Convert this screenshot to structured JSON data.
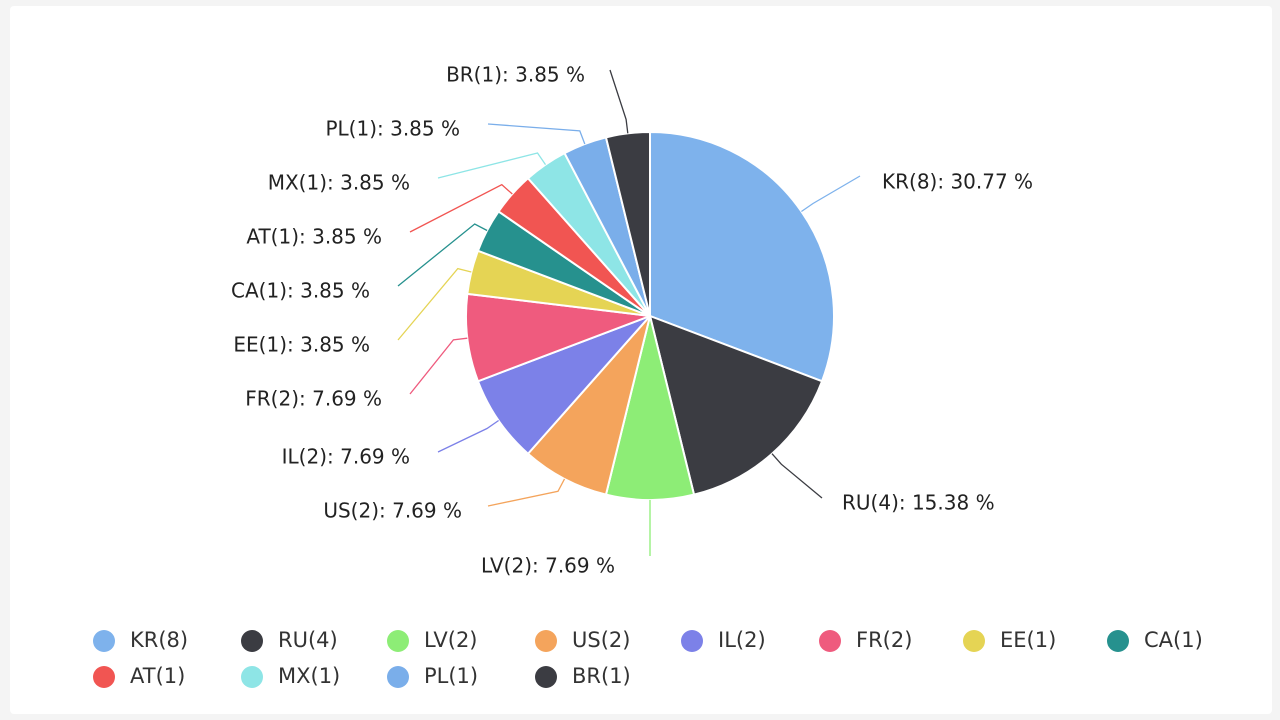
{
  "chart_data": {
    "type": "pie",
    "title": "",
    "series": [
      {
        "name": "KR(8)",
        "label": "KR(8): 30.77 %",
        "value": 8,
        "percent": 30.77,
        "color": "#7eb2ec"
      },
      {
        "name": "RU(4)",
        "label": "RU(4): 15.38 %",
        "value": 4,
        "percent": 15.38,
        "color": "#3b3c42"
      },
      {
        "name": "LV(2)",
        "label": "LV(2): 7.69 %",
        "value": 2,
        "percent": 7.69,
        "color": "#8ded76"
      },
      {
        "name": "US(2)",
        "label": "US(2): 7.69 %",
        "value": 2,
        "percent": 7.69,
        "color": "#f4a45c"
      },
      {
        "name": "IL(2)",
        "label": "IL(2): 7.69 %",
        "value": 2,
        "percent": 7.69,
        "color": "#7c81e8"
      },
      {
        "name": "FR(2)",
        "label": "FR(2): 7.69 %",
        "value": 2,
        "percent": 7.69,
        "color": "#ef5b7e"
      },
      {
        "name": "EE(1)",
        "label": "EE(1): 3.85 %",
        "value": 1,
        "percent": 3.85,
        "color": "#e5d454"
      },
      {
        "name": "CA(1)",
        "label": "CA(1): 3.85 %",
        "value": 1,
        "percent": 3.85,
        "color": "#26918e"
      },
      {
        "name": "AT(1)",
        "label": "AT(1): 3.85 %",
        "value": 1,
        "percent": 3.85,
        "color": "#f15552"
      },
      {
        "name": "MX(1)",
        "label": "MX(1): 3.85 %",
        "value": 1,
        "percent": 3.85,
        "color": "#8ee5e6"
      },
      {
        "name": "PL(1)",
        "label": "PL(1): 3.85 %",
        "value": 1,
        "percent": 3.85,
        "color": "#7aaeea"
      },
      {
        "name": "BR(1)",
        "label": "BR(1): 3.85 %",
        "value": 1,
        "percent": 3.85,
        "color": "#3b3c42"
      }
    ],
    "legend_position": "bottom"
  }
}
